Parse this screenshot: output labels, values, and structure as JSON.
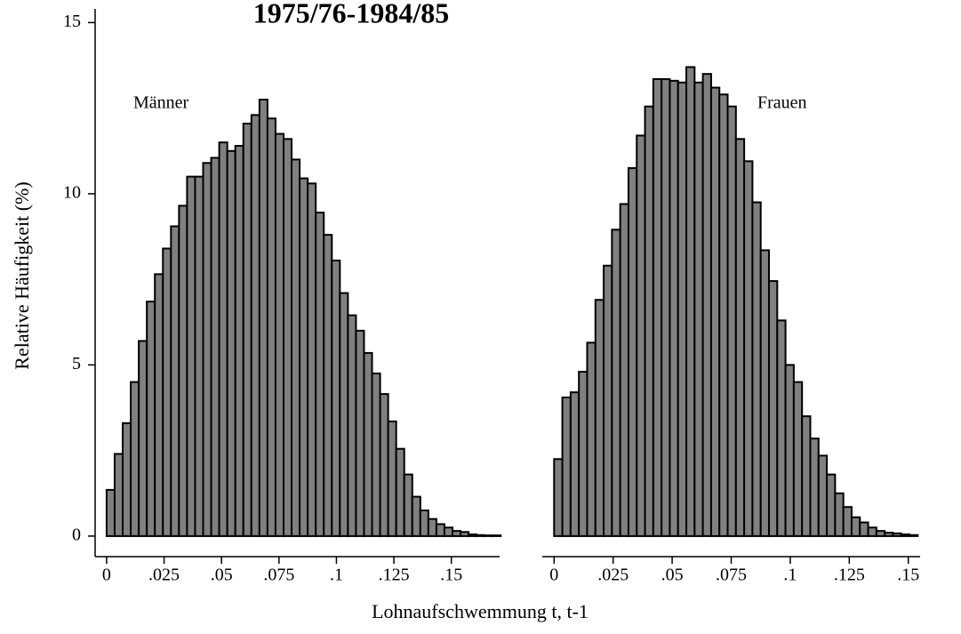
{
  "title": "1975/76-1984/85",
  "y_label": "Relative Häufigkeit (%)",
  "x_label": "Lohnaufschwemmung t, t-1",
  "chart_data": [
    {
      "type": "histogram",
      "annotation": "Männer",
      "color": "#808080",
      "bins": [
        0,
        0.0035,
        0.007,
        0.0105,
        0.014,
        0.0175,
        0.021,
        0.0245,
        0.028,
        0.0315,
        0.035,
        0.0385,
        0.042,
        0.0455,
        0.049,
        0.0525,
        0.056,
        0.0595,
        0.063,
        0.0665,
        0.07,
        0.0735,
        0.077,
        0.0805,
        0.084,
        0.0875,
        0.091,
        0.0945,
        0.098,
        0.1015,
        0.105,
        0.1085,
        0.112,
        0.1155,
        0.119,
        0.1225,
        0.126,
        0.1295,
        0.133,
        0.1365,
        0.14,
        0.1435,
        0.147,
        0.1505,
        0.154,
        0.1575,
        0.161,
        0.1645,
        0.168,
        0.1715
      ],
      "values": [
        1.35,
        2.4,
        3.3,
        4.5,
        5.7,
        6.85,
        7.65,
        8.4,
        9.05,
        9.65,
        10.5,
        10.5,
        10.9,
        11.05,
        11.5,
        11.25,
        11.4,
        12.05,
        12.3,
        12.75,
        12.2,
        11.75,
        11.6,
        11.0,
        10.45,
        10.3,
        9.45,
        8.8,
        8.05,
        7.1,
        6.45,
        6.0,
        5.35,
        4.75,
        4.15,
        3.35,
        2.55,
        1.8,
        1.15,
        0.75,
        0.5,
        0.35,
        0.25,
        0.15,
        0.12,
        0.05,
        0.03,
        0.02,
        0.02
      ],
      "xlim": [
        -0.005,
        0.171
      ],
      "ylim": [
        -0.6,
        15.4
      ],
      "xticks": [
        0,
        {
          "value": 0.025,
          "label": ".025"
        },
        {
          "value": 0.05,
          "label": ".05"
        },
        {
          "value": 0.075,
          "label": ".075"
        },
        {
          "value": 0.1,
          "label": ".1"
        },
        {
          "value": 0.125,
          "label": ".125"
        },
        {
          "value": 0.15,
          "label": ".15"
        }
      ],
      "yticks": [
        0,
        5,
        10,
        15
      ]
    },
    {
      "type": "histogram",
      "annotation": "Frauen",
      "color": "#808080",
      "bins": [
        0,
        0.0035,
        0.007,
        0.0105,
        0.014,
        0.0175,
        0.021,
        0.0245,
        0.028,
        0.0315,
        0.035,
        0.0385,
        0.042,
        0.0455,
        0.049,
        0.0525,
        0.056,
        0.0595,
        0.063,
        0.0665,
        0.07,
        0.0735,
        0.077,
        0.0805,
        0.084,
        0.0875,
        0.091,
        0.0945,
        0.098,
        0.1015,
        0.105,
        0.1085,
        0.112,
        0.1155,
        0.119,
        0.1225,
        0.126,
        0.1295,
        0.133,
        0.1365,
        0.14,
        0.1435,
        0.147,
        0.1505,
        0.154
      ],
      "values": [
        2.25,
        4.05,
        4.2,
        4.8,
        5.65,
        6.9,
        7.9,
        8.95,
        9.7,
        10.75,
        11.7,
        12.55,
        13.35,
        13.35,
        13.3,
        13.25,
        13.7,
        13.25,
        13.5,
        13.1,
        12.9,
        12.55,
        11.6,
        10.95,
        9.75,
        8.35,
        7.45,
        6.3,
        5.0,
        4.5,
        3.5,
        2.85,
        2.35,
        1.8,
        1.25,
        0.85,
        0.55,
        0.4,
        0.25,
        0.15,
        0.1,
        0.08,
        0.05,
        0.03
      ],
      "xlim": [
        -0.005,
        0.155
      ],
      "ylim": [
        -0.6,
        15.4
      ],
      "xticks": [
        0,
        {
          "value": 0.025,
          "label": ".025"
        },
        {
          "value": 0.05,
          "label": ".05"
        },
        {
          "value": 0.075,
          "label": ".075"
        },
        {
          "value": 0.1,
          "label": ".1"
        },
        {
          "value": 0.125,
          "label": ".125"
        },
        {
          "value": 0.15,
          "label": ".15"
        }
      ]
    }
  ]
}
